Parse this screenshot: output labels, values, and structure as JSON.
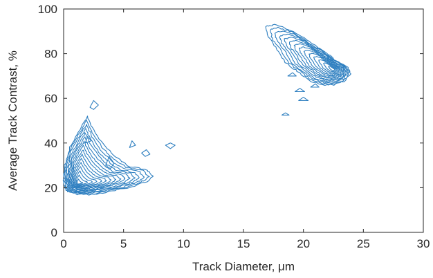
{
  "chart_data": {
    "type": "contour",
    "xlabel": "Track Diameter,   μm",
    "ylabel": "Average Track Contrast, %",
    "xlim": [
      0,
      30
    ],
    "ylim": [
      0,
      100
    ],
    "xticks": [
      0,
      5,
      10,
      15,
      20,
      25,
      30
    ],
    "yticks": [
      0,
      20,
      40,
      60,
      80,
      100
    ],
    "grid": false,
    "line_color": "#2e7fc0",
    "clusters": [
      {
        "center": [
          1.2,
          22
        ],
        "levels": 16,
        "outer_contour": [
          [
            0.1,
            20
          ],
          [
            0.4,
            18
          ],
          [
            1.2,
            17
          ],
          [
            2.6,
            17
          ],
          [
            4,
            18.5
          ],
          [
            5.5,
            20
          ],
          [
            6.8,
            22.5
          ],
          [
            7.5,
            25
          ],
          [
            7,
            28
          ],
          [
            5.5,
            29.5
          ],
          [
            4.5,
            33
          ],
          [
            3.5,
            38
          ],
          [
            2.5,
            46
          ],
          [
            2,
            52
          ],
          [
            1.2,
            45
          ],
          [
            0.5,
            38
          ],
          [
            0.1,
            30
          ],
          [
            0,
            24
          ]
        ],
        "isolated_contours": [
          [
            [
              2.2,
              56
            ],
            [
              2.5,
              59
            ],
            [
              2.9,
              57
            ],
            [
              2.5,
              55
            ]
          ],
          [
            [
              3.5,
              30
            ],
            [
              3.8,
              34
            ],
            [
              4.2,
              31
            ],
            [
              3.9,
              28.5
            ]
          ],
          [
            [
              6.5,
              35.5
            ],
            [
              6.9,
              37
            ],
            [
              7.2,
              35
            ],
            [
              6.8,
              34
            ]
          ],
          [
            [
              8.5,
              39
            ],
            [
              8.9,
              40
            ],
            [
              9.3,
              39
            ],
            [
              8.9,
              37.5
            ]
          ],
          [
            [
              5.5,
              38
            ],
            [
              5.7,
              41
            ],
            [
              6,
              39
            ]
          ],
          [
            [
              1.8,
              40
            ],
            [
              2.0,
              43
            ],
            [
              2.3,
              41
            ]
          ]
        ]
      },
      {
        "center": [
          22.5,
          73
        ],
        "levels": 14,
        "outer_contour": [
          [
            16.8,
            92
          ],
          [
            17.6,
            93
          ],
          [
            18.8,
            91
          ],
          [
            20,
            87
          ],
          [
            21.5,
            82
          ],
          [
            22.6,
            77.5
          ],
          [
            23.7,
            74
          ],
          [
            23.9,
            71
          ],
          [
            23.5,
            68
          ],
          [
            22.6,
            66
          ],
          [
            21.6,
            66
          ],
          [
            20.5,
            68
          ],
          [
            19.5,
            72
          ],
          [
            18.5,
            76
          ],
          [
            17.7,
            83
          ],
          [
            17,
            88
          ]
        ],
        "isolated_contours": [
          [
            [
              19.3,
              63
            ],
            [
              19.7,
              64.5
            ],
            [
              20.1,
              63
            ]
          ],
          [
            [
              19.6,
              59
            ],
            [
              20,
              60.5
            ],
            [
              20.4,
              59
            ]
          ],
          [
            [
              18.7,
              70
            ],
            [
              19.1,
              71.5
            ],
            [
              19.4,
              70
            ]
          ],
          [
            [
              18.2,
              52.5
            ],
            [
              18.5,
              53.5
            ],
            [
              18.8,
              52.5
            ]
          ],
          [
            [
              20.6,
              65
            ],
            [
              21,
              66.5
            ],
            [
              21.3,
              65
            ]
          ]
        ]
      }
    ]
  }
}
